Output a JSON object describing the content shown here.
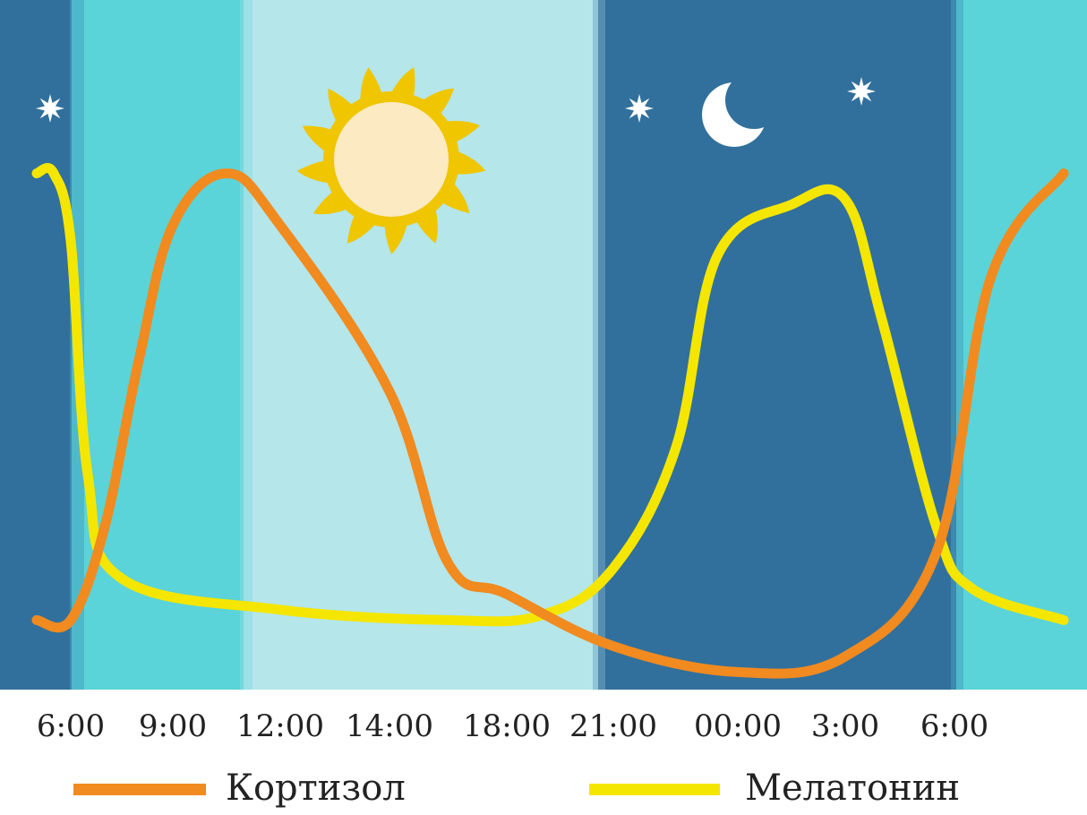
{
  "chart_data": {
    "type": "line",
    "title": "",
    "xlabel": "",
    "ylabel": "",
    "x_ticks": [
      "6:00",
      "9:00",
      "12:00",
      "14:00",
      "18:00",
      "21:00",
      "00:00",
      "3:00",
      "6:00"
    ],
    "y_scale": "relative level, 0–100 (axis not printed)",
    "ylim": [
      0,
      100
    ],
    "legend_position": "bottom",
    "background_bands": [
      {
        "from": "before 6:00",
        "to": "6:00",
        "phase": "night",
        "color": "#31709c"
      },
      {
        "from": "6:00",
        "to": "11:00",
        "phase": "morning",
        "color": "#5ad4d9"
      },
      {
        "from": "11:00",
        "to": "20:30",
        "phase": "day",
        "color": "#b4e6ea"
      },
      {
        "from": "20:30",
        "to": "6:00",
        "phase": "night",
        "color": "#31709c"
      },
      {
        "from": "6:00",
        "to": "after 6:00",
        "phase": "morning",
        "color": "#5ad4d9"
      }
    ],
    "icons": [
      "sun-icon",
      "moon-icon",
      "star-icon",
      "star-icon",
      "star-icon"
    ],
    "series": [
      {
        "name": "Кортизол",
        "color": "#f18a1f",
        "points": [
          [
            "5:00",
            12
          ],
          [
            "6:00",
            12
          ],
          [
            "7:00",
            30
          ],
          [
            "8:00",
            62
          ],
          [
            "9:00",
            88
          ],
          [
            "10:30",
            98
          ],
          [
            "12:00",
            88
          ],
          [
            "14:00",
            56
          ],
          [
            "16:00",
            23
          ],
          [
            "18:00",
            17
          ],
          [
            "21:00",
            7
          ],
          [
            "00:00",
            2
          ],
          [
            "3:00",
            5
          ],
          [
            "5:30",
            25
          ],
          [
            "7:00",
            78
          ],
          [
            "9:00",
            98
          ]
        ]
      },
      {
        "name": "Мелатонин",
        "color": "#f5e600",
        "points": [
          [
            "5:00",
            98
          ],
          [
            "5:30",
            98
          ],
          [
            "6:00",
            85
          ],
          [
            "6:30",
            40
          ],
          [
            "7:30",
            20
          ],
          [
            "12:00",
            14
          ],
          [
            "16:00",
            12
          ],
          [
            "19:00",
            13
          ],
          [
            "21:00",
            22
          ],
          [
            "22:30",
            45
          ],
          [
            "23:30",
            82
          ],
          [
            "1:30",
            92
          ],
          [
            "3:00",
            93
          ],
          [
            "4:00",
            70
          ],
          [
            "5:30",
            30
          ],
          [
            "6:30",
            18
          ],
          [
            "9:00",
            12
          ]
        ]
      }
    ]
  }
}
